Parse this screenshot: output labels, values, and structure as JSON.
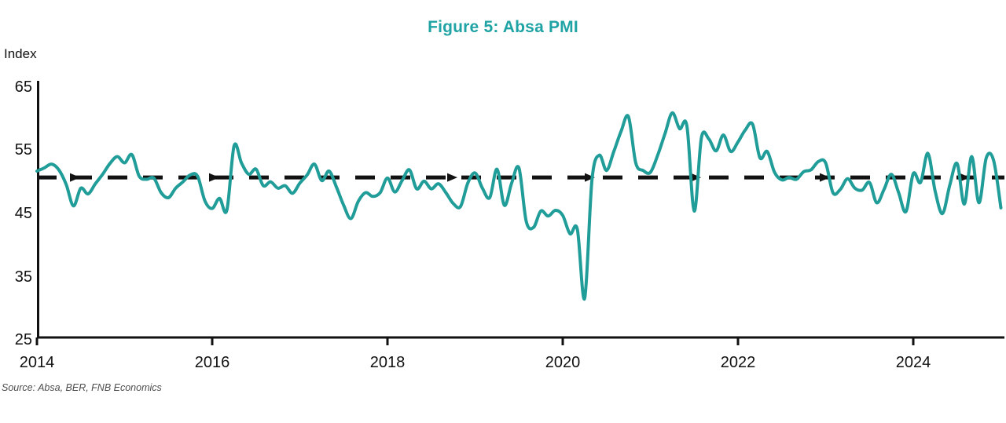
{
  "title": "Figure 5: Absa PMI",
  "source": "Source: Absa, BER, FNB Economics",
  "colors": {
    "title_teal": "#20A3A4",
    "line_teal": "#219D99",
    "reference_black": "#121212",
    "axis_black": "#111111",
    "source_gray": "#4d4d4d"
  },
  "chart_data": {
    "type": "line",
    "title": "Figure 5: Absa PMI",
    "ylabel": "Index",
    "xlabel": "",
    "ylim": [
      25,
      65
    ],
    "y_ticks": [
      65,
      55,
      45,
      35,
      25
    ],
    "x_ticks": [
      "2014",
      "2016",
      "2018",
      "2020",
      "2022",
      "2024"
    ],
    "x_start": "2014-01",
    "x_end": "2025-01",
    "frequency": "monthly",
    "grid": false,
    "legend": "none",
    "reference_line": {
      "value": 50.7,
      "style": "dashed-with-arrowheads",
      "color": "#121212"
    },
    "series": [
      {
        "name": "Absa PMI",
        "color": "#219D99",
        "values": [
          51.7,
          52.2,
          52.8,
          51.9,
          49.6,
          46.2,
          49.0,
          48.1,
          49.7,
          51.2,
          52.9,
          54.0,
          53.0,
          54.3,
          50.9,
          50.4,
          50.6,
          48.3,
          47.5,
          49.0,
          50.0,
          51.1,
          50.9,
          47.0,
          45.8,
          47.4,
          45.5,
          55.7,
          53.0,
          51.2,
          52.0,
          49.4,
          50.0,
          49.0,
          49.4,
          48.2,
          49.8,
          51.1,
          52.8,
          50.2,
          51.7,
          49.2,
          46.3,
          44.2,
          46.9,
          48.3,
          47.7,
          48.3,
          50.6,
          48.4,
          50.2,
          51.9,
          48.9,
          50.1,
          48.9,
          49.7,
          48.3,
          46.6,
          46.1,
          49.8,
          51.4,
          49.0,
          47.5,
          52.0,
          46.3,
          49.8,
          52.2,
          43.8,
          42.8,
          45.4,
          44.6,
          45.5,
          44.7,
          41.8,
          42.5,
          31.6,
          50.3,
          54.2,
          51.8,
          54.8,
          58.0,
          60.3,
          53.0,
          51.8,
          51.5,
          54.2,
          57.6,
          60.9,
          58.4,
          58.8,
          45.4,
          57.0,
          56.8,
          54.9,
          57.4,
          54.8,
          56.3,
          58.2,
          59.1,
          53.8,
          54.8,
          51.5,
          50.3,
          50.7,
          50.4,
          51.6,
          51.9,
          53.2,
          53.0,
          48.3,
          48.8,
          50.5,
          49.0,
          48.7,
          49.9,
          46.7,
          48.8,
          51.2,
          48.3,
          45.3,
          51.3,
          49.9,
          54.5,
          48.5,
          45.0,
          49.5,
          52.9,
          46.5,
          54.0,
          46.7,
          53.8,
          53.4,
          45.9
        ]
      }
    ]
  }
}
